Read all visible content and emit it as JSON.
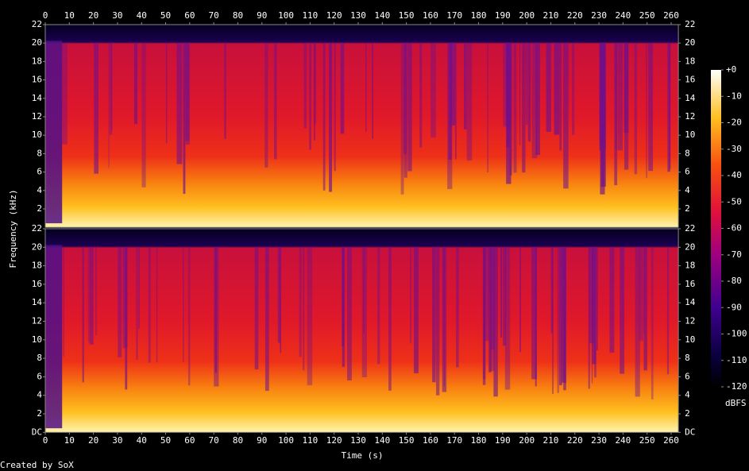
{
  "chart_data": {
    "type": "spectrogram",
    "xlabel": "Time (s)",
    "ylabel": "Frequency (kHz)",
    "xlim": [
      0,
      263
    ],
    "xticks": [
      0,
      10,
      20,
      30,
      40,
      50,
      60,
      70,
      80,
      90,
      100,
      110,
      120,
      130,
      140,
      150,
      160,
      170,
      180,
      190,
      200,
      210,
      220,
      230,
      240,
      250,
      260
    ],
    "channels": [
      {
        "ylim": [
          0,
          22
        ],
        "yticks": [
          2,
          4,
          6,
          8,
          10,
          12,
          14,
          16,
          18,
          20,
          22
        ]
      },
      {
        "ylim": [
          0,
          22
        ],
        "yticks": [
          {
            "value": 0,
            "label": "DC"
          },
          2,
          4,
          6,
          8,
          10,
          12,
          14,
          16,
          18,
          20,
          22
        ]
      }
    ],
    "colorbar": {
      "label": "dBFS",
      "lim": [
        -120,
        0
      ],
      "ticks": [
        {
          "value": 0,
          "label": "+0"
        },
        -10,
        -20,
        -30,
        -40,
        -50,
        -60,
        -70,
        -80,
        -90,
        -100,
        -110,
        -120
      ]
    }
  },
  "footer": "Created by SoX"
}
